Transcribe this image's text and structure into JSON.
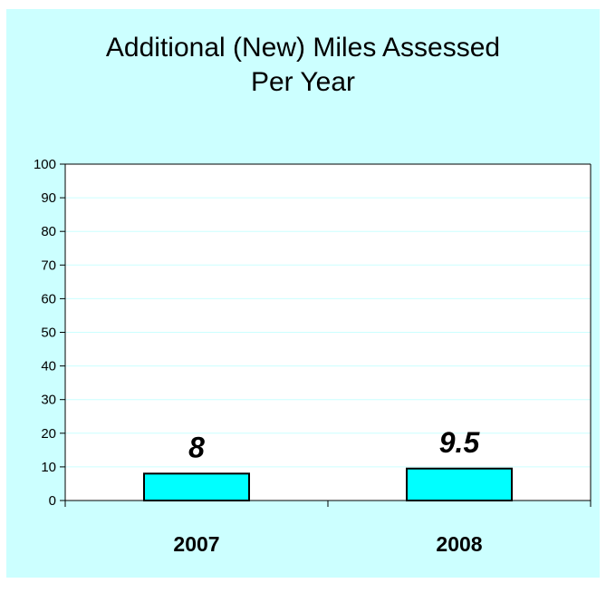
{
  "chart_data": {
    "type": "bar",
    "title_lines": [
      "Additional (New) Miles Assessed",
      "Per Year"
    ],
    "categories": [
      "2007",
      "2008"
    ],
    "values": [
      8,
      9.5
    ],
    "data_labels": [
      "8",
      "9.5"
    ],
    "ylim": [
      0,
      100
    ],
    "yticks": [
      0,
      10,
      20,
      30,
      40,
      50,
      60,
      70,
      80,
      90,
      100
    ],
    "grid": true,
    "legend": "none",
    "colors": {
      "background": "#ccffff",
      "plot_area": "#ffffff",
      "bar": "#00ffff",
      "bar_edge": "#000000",
      "gridline": "#ccffff"
    }
  }
}
